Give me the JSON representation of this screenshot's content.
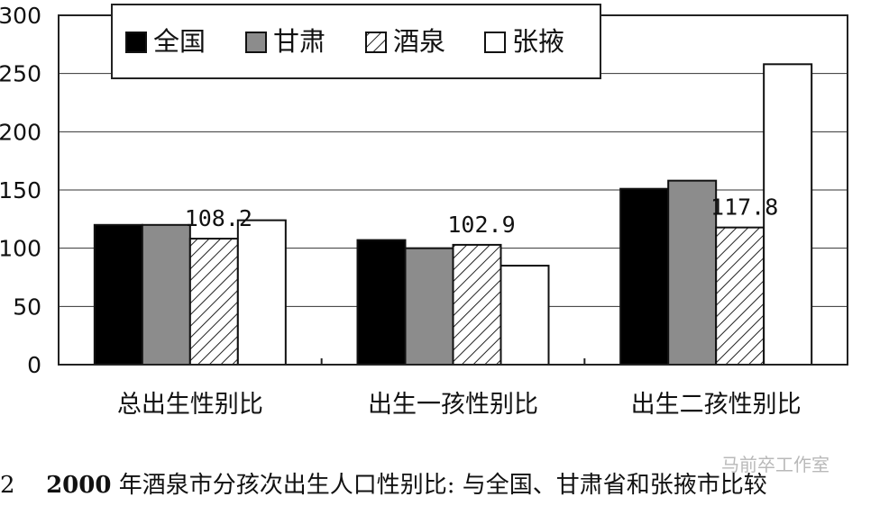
{
  "chart_data": {
    "type": "bar",
    "categories": [
      "总出生性别比",
      "出生一孩性别比",
      "出生二孩性别比"
    ],
    "series": [
      {
        "name": "全国",
        "values": [
          120,
          107,
          151
        ],
        "fill": "#000000"
      },
      {
        "name": "甘肃",
        "values": [
          120,
          100,
          158
        ],
        "fill": "#8c8c8c"
      },
      {
        "name": "酒泉",
        "values": [
          108.2,
          102.9,
          117.8
        ],
        "fill": "hatch"
      },
      {
        "name": "张掖",
        "values": [
          124,
          85,
          258
        ],
        "fill": "#ffffff"
      }
    ],
    "ylim": [
      0,
      300
    ],
    "yticks": [
      "0",
      "50",
      "100",
      "150",
      "200",
      "250",
      "300"
    ],
    "data_labels": [
      "108.2",
      "102.9",
      "117.8"
    ],
    "grid": "horizontal",
    "legend": "top-left"
  },
  "caption": {
    "prefix": "2",
    "year": "2000",
    "text": "年酒泉市分孩次出生人口性别比: 与全国、甘肃省和张掖市比较"
  },
  "watermark": "马前卒工作室"
}
